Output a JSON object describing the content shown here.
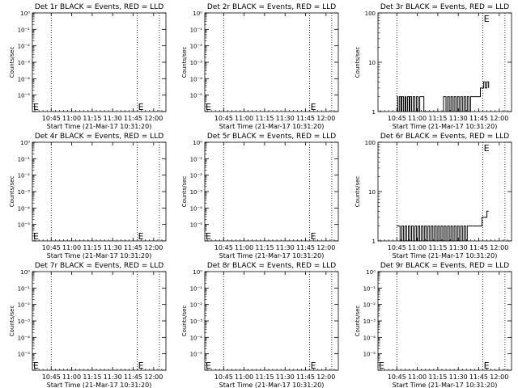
{
  "colors": {
    "background": "#ffffff",
    "foreground": "#000000",
    "lld": "#ff0000"
  },
  "common": {
    "xlabel": "Start Time (21-Mar-17 10:31:20)",
    "ylabel": "Counts/sec",
    "xticks": [
      "10:45",
      "11:00",
      "11:15",
      "11:30",
      "11:45",
      "12:00"
    ],
    "log_ticks_empty": [
      "10⁰",
      "10⁻¹",
      "10⁻²",
      "10⁻³",
      "10⁻⁴",
      "10⁻⁵"
    ],
    "log_ticks_data": [
      "1",
      "10",
      "100"
    ]
  },
  "chart_data": [
    {
      "type": "line",
      "title": "Det 1r BLACK = Events, RED = LLD",
      "yscale": "log",
      "ylim": [
        1e-06,
        1
      ],
      "xlim": [
        10.52,
        12.15
      ],
      "vlines": [
        10.75,
        11.8,
        12.07
      ],
      "series": []
    },
    {
      "type": "line",
      "title": "Det 2r BLACK = Events, RED = LLD",
      "yscale": "log",
      "ylim": [
        1e-06,
        1
      ],
      "xlim": [
        10.52,
        12.15
      ],
      "vlines": [
        10.75,
        11.8,
        12.07
      ],
      "series": []
    },
    {
      "type": "line",
      "title": "Det 3r BLACK = Events, RED = LLD",
      "yscale": "log",
      "ylim": [
        1,
        100
      ],
      "xlim": [
        10.52,
        12.15
      ],
      "vlines": [
        10.75,
        11.8,
        12.07
      ],
      "series": [
        {
          "color": "#000000",
          "x": [
            10.75,
            10.76,
            10.78,
            10.8,
            10.81,
            10.83,
            10.85,
            10.86,
            10.88,
            10.9,
            10.91,
            10.93,
            10.95,
            10.97,
            10.99,
            11.01,
            11.03,
            11.05,
            11.08,
            11.12,
            11.16,
            11.2,
            11.24,
            11.28,
            11.32,
            11.35,
            11.37,
            11.39,
            11.41,
            11.43,
            11.45,
            11.47,
            11.49,
            11.51,
            11.53,
            11.55,
            11.57,
            11.59,
            11.61,
            11.63,
            11.65,
            11.67,
            11.69,
            11.71,
            11.73,
            11.75,
            11.77,
            11.79,
            11.81,
            11.83,
            11.85,
            11.87
          ],
          "y": [
            2,
            1,
            2,
            1,
            2,
            1,
            2,
            1,
            2,
            1,
            2,
            1,
            2,
            1,
            2,
            1,
            2,
            2,
            1,
            1,
            1,
            1,
            1,
            1,
            2,
            1,
            2,
            1,
            2,
            1,
            2,
            1,
            2,
            1,
            2,
            1,
            2,
            1,
            2,
            1,
            2,
            2,
            2,
            2,
            2,
            2,
            3,
            3,
            4,
            3,
            4,
            3
          ]
        }
      ]
    },
    {
      "type": "line",
      "title": "Det 4r BLACK = Events, RED = LLD",
      "yscale": "log",
      "ylim": [
        1e-06,
        1
      ],
      "xlim": [
        10.52,
        12.15
      ],
      "vlines": [
        10.75,
        11.8,
        12.07
      ],
      "series": []
    },
    {
      "type": "line",
      "title": "Det 5r BLACK = Events, RED = LLD",
      "yscale": "log",
      "ylim": [
        1e-06,
        1
      ],
      "xlim": [
        10.52,
        12.15
      ],
      "vlines": [
        10.75,
        11.8,
        12.07
      ],
      "series": []
    },
    {
      "type": "line",
      "title": "Det 6r BLACK = Events, RED = LLD",
      "yscale": "log",
      "ylim": [
        1,
        100
      ],
      "xlim": [
        10.52,
        12.15
      ],
      "vlines": [
        10.75,
        11.8,
        12.07
      ],
      "series": [
        {
          "color": "#000000",
          "x": [
            10.75,
            10.77,
            10.79,
            10.81,
            10.83,
            10.85,
            10.87,
            10.89,
            10.91,
            10.93,
            10.95,
            10.97,
            10.99,
            11.01,
            11.03,
            11.05,
            11.07,
            11.09,
            11.11,
            11.13,
            11.15,
            11.17,
            11.19,
            11.21,
            11.23,
            11.25,
            11.27,
            11.29,
            11.31,
            11.33,
            11.35,
            11.37,
            11.39,
            11.41,
            11.43,
            11.45,
            11.47,
            11.49,
            11.51,
            11.53,
            11.55,
            11.57,
            11.59,
            11.61,
            11.63,
            11.65,
            11.67,
            11.69,
            11.71,
            11.73,
            11.75,
            11.77,
            11.79,
            11.81,
            11.83,
            11.85,
            11.87
          ],
          "y": [
            2,
            2,
            1,
            2,
            1,
            2,
            1,
            2,
            1,
            2,
            1,
            2,
            1,
            2,
            1,
            2,
            1,
            2,
            1,
            2,
            1,
            2,
            1,
            2,
            1,
            2,
            1,
            2,
            1,
            2,
            1,
            2,
            1,
            2,
            1,
            2,
            1,
            2,
            1,
            2,
            1,
            2,
            1,
            2,
            2,
            2,
            2,
            2,
            2,
            2,
            2,
            2,
            3,
            3,
            3,
            4,
            4
          ]
        }
      ]
    },
    {
      "type": "line",
      "title": "Det 7r BLACK = Events, RED = LLD",
      "yscale": "log",
      "ylim": [
        1e-06,
        1
      ],
      "xlim": [
        10.52,
        12.15
      ],
      "vlines": [
        10.75,
        11.8,
        12.07
      ],
      "series": []
    },
    {
      "type": "line",
      "title": "Det 8r BLACK = Events, RED = LLD",
      "yscale": "log",
      "ylim": [
        1e-06,
        1
      ],
      "xlim": [
        10.52,
        12.15
      ],
      "vlines": [
        10.75,
        11.8,
        12.07
      ],
      "series": []
    },
    {
      "type": "line",
      "title": "Det 9r BLACK = Events, RED = LLD",
      "yscale": "log",
      "ylim": [
        1e-06,
        1
      ],
      "xlim": [
        10.52,
        12.15
      ],
      "vlines": [
        10.75,
        11.8,
        12.07
      ],
      "series": []
    }
  ]
}
